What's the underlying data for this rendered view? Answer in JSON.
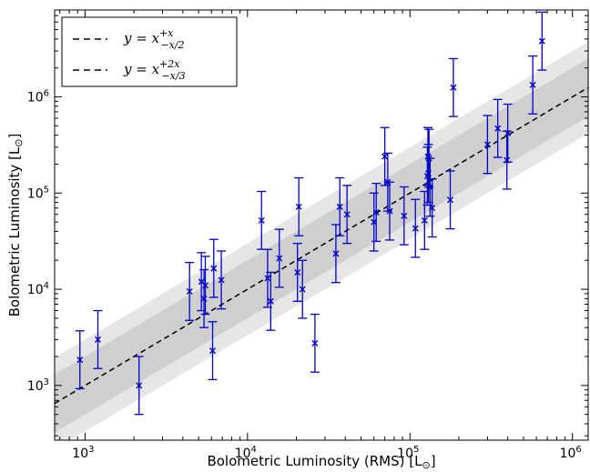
{
  "chart_data": {
    "type": "scatter",
    "xlabel": "Bolometric Luminosity (RMS) [L",
    "ylabel": "Bolometric Luminosity [L",
    "sun_symbol": "⊙",
    "xscale": "log",
    "yscale": "log",
    "xlim": [
      650,
      1250000
    ],
    "ylim": [
      270,
      8000000
    ],
    "x_ticks": [
      {
        "value": 1000,
        "base": "10",
        "exp": "3"
      },
      {
        "value": 10000,
        "base": "10",
        "exp": "4"
      },
      {
        "value": 100000,
        "base": "10",
        "exp": "5"
      },
      {
        "value": 1000000,
        "base": "10",
        "exp": "6"
      }
    ],
    "y_ticks": [
      {
        "value": 1000,
        "base": "10",
        "exp": "3"
      },
      {
        "value": 10000,
        "base": "10",
        "exp": "4"
      },
      {
        "value": 100000,
        "base": "10",
        "exp": "5"
      },
      {
        "value": 1000000,
        "base": "10",
        "exp": "6"
      }
    ],
    "legend": {
      "placement": "top-left",
      "entries": [
        {
          "label": "y = x",
          "sup": "+x",
          "sub": "−x/2"
        },
        {
          "label": "y = x",
          "sup": "+2x",
          "sub": "−x/3"
        }
      ]
    },
    "band_inner_factor": 2,
    "band_outer_factor": 3,
    "error_factor": 2,
    "colors": {
      "points": "#0000cc",
      "line": "#000000",
      "band_inner": "#cfcfcf",
      "band_outer": "#e6e6e6"
    },
    "points": [
      [
        930,
        1850
      ],
      [
        1200,
        3000
      ],
      [
        2150,
        1000
      ],
      [
        4400,
        9500
      ],
      [
        5200,
        12000
      ],
      [
        5400,
        8000
      ],
      [
        5500,
        11000
      ],
      [
        6100,
        2300
      ],
      [
        6200,
        16500
      ],
      [
        6900,
        12500
      ],
      [
        12200,
        52000
      ],
      [
        13300,
        13000
      ],
      [
        13900,
        7500
      ],
      [
        15700,
        21000
      ],
      [
        20300,
        15000
      ],
      [
        20700,
        72000
      ],
      [
        21800,
        10000
      ],
      [
        26000,
        2750
      ],
      [
        35000,
        23500
      ],
      [
        37000,
        72000
      ],
      [
        41000,
        60000
      ],
      [
        60000,
        50000
      ],
      [
        62000,
        63000
      ],
      [
        70000,
        240000
      ],
      [
        73000,
        130000
      ],
      [
        75000,
        65000
      ],
      [
        92000,
        58000
      ],
      [
        108000,
        43000
      ],
      [
        123000,
        52000
      ],
      [
        128000,
        150000
      ],
      [
        129000,
        240000
      ],
      [
        130000,
        160000
      ],
      [
        131000,
        230000
      ],
      [
        133000,
        115000
      ],
      [
        137000,
        70000
      ],
      [
        177000,
        85000
      ],
      [
        185000,
        1250000
      ],
      [
        300000,
        320000
      ],
      [
        347000,
        470000
      ],
      [
        395000,
        220000
      ],
      [
        400000,
        420000
      ],
      [
        570000,
        1330000
      ],
      [
        650000,
        3800000
      ]
    ]
  }
}
